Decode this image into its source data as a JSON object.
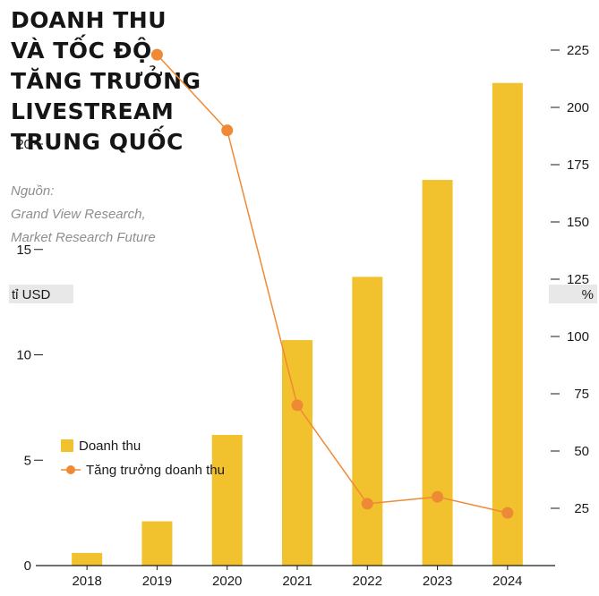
{
  "header": {
    "title_lines": [
      "DOANH THU",
      "VÀ TỐC ĐỘ",
      "TĂNG TRƯỞNG",
      "LIVESTREAM",
      "TRUNG QUỐC"
    ],
    "source_lines": [
      "Nguồn:",
      "Grand View Research,",
      "Market Research Future"
    ]
  },
  "colors": {
    "bar": "#f2c12e",
    "line": "#ee8a35",
    "axis": "#1a1a1a",
    "unit_bg": "#e8e8e8"
  },
  "chart_data": {
    "type": "bar",
    "title": "DOANH THU VÀ TỐC ĐỘ TĂNG TRƯỞNG LIVESTREAM TRUNG QUỐC",
    "categories": [
      "2018",
      "2019",
      "2020",
      "2021",
      "2022",
      "2023",
      "2024"
    ],
    "left_axis": {
      "unit": "tỉ USD",
      "ylim": [
        0,
        25
      ],
      "ticks": [
        "0",
        "5",
        "10",
        "15",
        "20"
      ]
    },
    "right_axis": {
      "unit": "%",
      "ylim": [
        0,
        250
      ],
      "ticks": [
        "25",
        "50",
        "75",
        "100",
        "125",
        "150",
        "175",
        "200",
        "225"
      ]
    },
    "series": [
      {
        "name": "Doanh thu",
        "type": "bar",
        "axis": "left",
        "values": [
          0.6,
          2.1,
          6.2,
          10.7,
          13.7,
          18.3,
          22.9
        ]
      },
      {
        "name": "Tăng trưởng doanh thu",
        "type": "line",
        "axis": "right",
        "values": [
          null,
          223,
          190,
          70,
          27,
          30,
          23
        ]
      }
    ],
    "legend": "left-middle",
    "grid": false
  }
}
